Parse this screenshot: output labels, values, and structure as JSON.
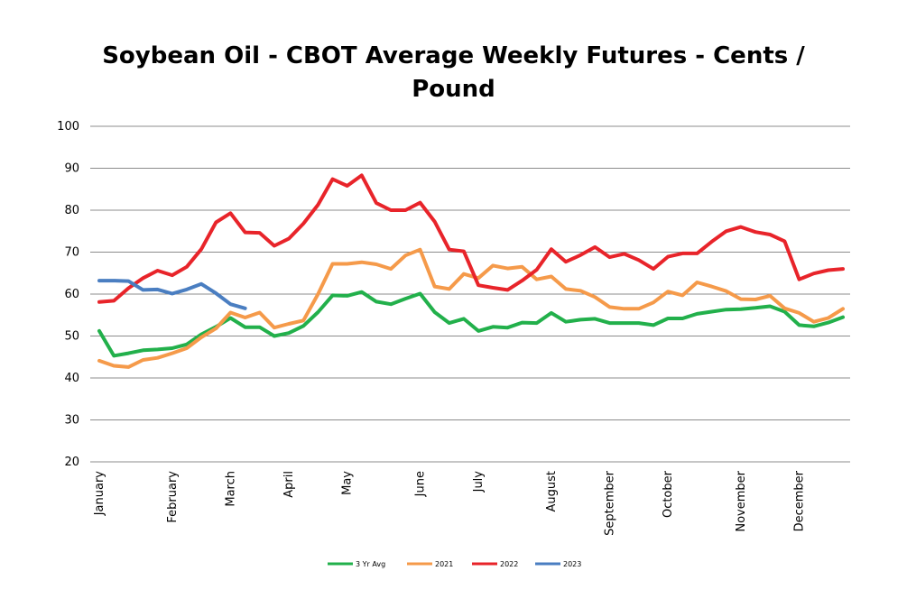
{
  "chart_data": {
    "type": "line",
    "title_lines": [
      "Soybean Oil - CBOT Average Weekly Futures - Cents /",
      "Pound"
    ],
    "xlabel": "",
    "ylabel": "",
    "ylim": [
      20,
      100
    ],
    "yticks": [
      20,
      30,
      40,
      50,
      60,
      70,
      80,
      90,
      100
    ],
    "grid": "horizontal",
    "legend_position": "bottom",
    "n_weeks": 52,
    "month_labels": [
      {
        "label": "January",
        "week": 1
      },
      {
        "label": "February",
        "week": 6
      },
      {
        "label": "March",
        "week": 10
      },
      {
        "label": "April",
        "week": 14
      },
      {
        "label": "May",
        "week": 18
      },
      {
        "label": "June",
        "week": 23
      },
      {
        "label": "July",
        "week": 27
      },
      {
        "label": "August",
        "week": 32
      },
      {
        "label": "September",
        "week": 36
      },
      {
        "label": "October",
        "week": 40
      },
      {
        "label": "November",
        "week": 45
      },
      {
        "label": "December",
        "week": 49
      }
    ],
    "series": [
      {
        "name": "3 Yr Avg",
        "color": "#22b04b",
        "values": [
          51.2,
          45.3,
          45.9,
          46.6,
          46.8,
          47.1,
          48.0,
          50.4,
          52.2,
          54.3,
          52.1,
          52.1,
          50.0,
          50.7,
          52.4,
          55.7,
          59.7,
          59.6,
          60.5,
          58.2,
          57.6,
          58.9,
          60.1,
          55.7,
          53.1,
          54.1,
          51.2,
          52.2,
          52.0,
          53.2,
          53.1,
          55.5,
          53.4,
          53.9,
          54.1,
          53.1,
          53.1,
          53.1,
          52.6,
          54.2,
          54.2,
          55.3,
          55.8,
          56.3,
          56.4,
          56.7,
          57.1,
          55.8,
          52.6,
          52.3,
          53.2,
          54.5
        ]
      },
      {
        "name": "2021",
        "color": "#f59a4a",
        "values": [
          44.1,
          42.9,
          42.6,
          44.3,
          44.8,
          45.9,
          47.1,
          49.7,
          51.8,
          55.6,
          54.4,
          55.6,
          52.0,
          52.9,
          53.7,
          60.0,
          67.2,
          67.2,
          67.6,
          67.1,
          66.0,
          69.2,
          70.6,
          61.8,
          61.2,
          64.8,
          63.8,
          66.8,
          66.1,
          66.5,
          63.5,
          64.2,
          61.2,
          60.8,
          59.3,
          56.9,
          56.5,
          56.5,
          58.0,
          60.6,
          59.7,
          62.8,
          61.8,
          60.7,
          58.8,
          58.7,
          59.6,
          56.6,
          55.5,
          53.4,
          54.3,
          56.5
        ]
      },
      {
        "name": "2022",
        "color": "#e8242a",
        "values": [
          58.1,
          58.4,
          61.4,
          63.8,
          65.6,
          64.5,
          66.5,
          70.7,
          77.1,
          79.3,
          74.7,
          74.6,
          71.5,
          73.2,
          76.8,
          81.3,
          87.4,
          85.8,
          88.3,
          81.7,
          80.0,
          80.0,
          81.8,
          77.3,
          70.6,
          70.2,
          62.1,
          61.5,
          61.0,
          63.2,
          65.8,
          70.7,
          67.7,
          69.3,
          71.2,
          68.8,
          69.6,
          68.1,
          66.0,
          68.9,
          69.7,
          69.7,
          72.5,
          75.0,
          76.0,
          74.8,
          74.2,
          72.6,
          63.5,
          64.9,
          65.7,
          66.0
        ]
      },
      {
        "name": "2023",
        "color": "#4a7ec1",
        "values": [
          63.2,
          63.2,
          63.1,
          61.0,
          61.1,
          60.1,
          61.1,
          62.4,
          60.2,
          57.6,
          56.6
        ]
      }
    ]
  }
}
